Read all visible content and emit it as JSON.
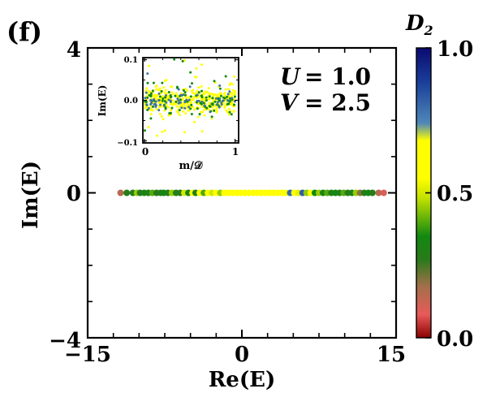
{
  "chart_data": [
    {
      "type": "scatter",
      "panel_label": "(f)",
      "xlabel": "Re(E)",
      "ylabel": "Im(E)",
      "xlim": [
        -15,
        15
      ],
      "ylim": [
        -4,
        4
      ],
      "xticks": [
        -15,
        0,
        15
      ],
      "yticks": [
        -4,
        0,
        4
      ],
      "xtick_labels": [
        "−15",
        "0",
        "15"
      ],
      "ytick_labels": [
        "−4",
        "0",
        "4"
      ],
      "annotations": [
        {
          "var": "U",
          "eq": "= 1.0"
        },
        {
          "var": "V",
          "eq": "= 2.5"
        }
      ],
      "series": [
        {
          "name": "eigenvalues",
          "color_by": "D2",
          "points": [
            {
              "x": -11.8,
              "y": 0,
              "c": 0.15
            },
            {
              "x": -11.2,
              "y": 0,
              "c": 0.28
            },
            {
              "x": -10.6,
              "y": 0,
              "c": 0.3
            },
            {
              "x": -10.2,
              "y": 0,
              "c": 0.45
            },
            {
              "x": -9.9,
              "y": 0,
              "c": 0.28
            },
            {
              "x": -9.5,
              "y": 0,
              "c": 0.32
            },
            {
              "x": -9.1,
              "y": 0,
              "c": 0.3
            },
            {
              "x": -8.7,
              "y": 0,
              "c": 0.4
            },
            {
              "x": -8.3,
              "y": 0,
              "c": 0.28
            },
            {
              "x": -7.9,
              "y": 0,
              "c": 0.3
            },
            {
              "x": -7.6,
              "y": 0,
              "c": 0.35
            },
            {
              "x": -7.2,
              "y": 0,
              "c": 0.28
            },
            {
              "x": -6.8,
              "y": 0,
              "c": 0.45
            },
            {
              "x": -6.4,
              "y": 0,
              "c": 0.3
            },
            {
              "x": -6.0,
              "y": 0,
              "c": 0.28
            },
            {
              "x": -5.6,
              "y": 0,
              "c": 0.5
            },
            {
              "x": -5.2,
              "y": 0,
              "c": 0.32
            },
            {
              "x": -4.8,
              "y": 0,
              "c": 0.62
            },
            {
              "x": -4.5,
              "y": 0,
              "c": 0.3
            },
            {
              "x": -4.1,
              "y": 0,
              "c": 0.55
            },
            {
              "x": -3.7,
              "y": 0,
              "c": 0.4
            },
            {
              "x": -3.3,
              "y": 0,
              "c": 0.55
            },
            {
              "x": -2.9,
              "y": 0,
              "c": 0.5
            },
            {
              "x": -2.5,
              "y": 0,
              "c": 0.58
            },
            {
              "x": -2.1,
              "y": 0,
              "c": 0.45
            },
            {
              "x": -1.7,
              "y": 0,
              "c": 0.6
            },
            {
              "x": -1.3,
              "y": 0,
              "c": 0.55
            },
            {
              "x": -0.9,
              "y": 0,
              "c": 0.62
            },
            {
              "x": -0.5,
              "y": 0,
              "c": 0.58
            },
            {
              "x": -0.1,
              "y": 0,
              "c": 0.64
            },
            {
              "x": 0.3,
              "y": 0,
              "c": 0.6
            },
            {
              "x": 0.7,
              "y": 0,
              "c": 0.65
            },
            {
              "x": 1.1,
              "y": 0,
              "c": 0.58
            },
            {
              "x": 1.5,
              "y": 0,
              "c": 0.62
            },
            {
              "x": 1.9,
              "y": 0,
              "c": 0.55
            },
            {
              "x": 2.3,
              "y": 0,
              "c": 0.63
            },
            {
              "x": 2.7,
              "y": 0,
              "c": 0.58
            },
            {
              "x": 3.1,
              "y": 0,
              "c": 0.6
            },
            {
              "x": 3.5,
              "y": 0,
              "c": 0.55
            },
            {
              "x": 3.9,
              "y": 0,
              "c": 0.62
            },
            {
              "x": 4.3,
              "y": 0,
              "c": 0.58
            },
            {
              "x": 4.7,
              "y": 0,
              "c": 0.8
            },
            {
              "x": 5.1,
              "y": 0,
              "c": 0.6
            },
            {
              "x": 5.5,
              "y": 0,
              "c": 0.52
            },
            {
              "x": 5.9,
              "y": 0,
              "c": 0.82
            },
            {
              "x": 6.3,
              "y": 0,
              "c": 0.45
            },
            {
              "x": 6.7,
              "y": 0,
              "c": 0.58
            },
            {
              "x": 7.1,
              "y": 0,
              "c": 0.35
            },
            {
              "x": 7.5,
              "y": 0,
              "c": 0.45
            },
            {
              "x": 7.9,
              "y": 0,
              "c": 0.32
            },
            {
              "x": 8.3,
              "y": 0,
              "c": 0.4
            },
            {
              "x": 8.7,
              "y": 0,
              "c": 0.3
            },
            {
              "x": 9.1,
              "y": 0,
              "c": 0.35
            },
            {
              "x": 9.5,
              "y": 0,
              "c": 0.3
            },
            {
              "x": 9.9,
              "y": 0,
              "c": 0.4
            },
            {
              "x": 10.3,
              "y": 0,
              "c": 0.28
            },
            {
              "x": 10.7,
              "y": 0,
              "c": 0.32
            },
            {
              "x": 11.1,
              "y": 0,
              "c": 0.45
            },
            {
              "x": 11.5,
              "y": 0,
              "c": 0.2
            },
            {
              "x": 11.9,
              "y": 0,
              "c": 0.28
            },
            {
              "x": 12.3,
              "y": 0,
              "c": 0.35
            },
            {
              "x": 12.7,
              "y": 0,
              "c": 0.28
            },
            {
              "x": 13.3,
              "y": 0,
              "c": 0.15
            },
            {
              "x": 13.8,
              "y": 0,
              "c": 0.1
            }
          ]
        }
      ],
      "colorbar": {
        "label": "D2",
        "range": [
          0.0,
          1.0
        ],
        "ticks": [
          0.0,
          0.5,
          1.0
        ],
        "tick_labels": [
          "0.0",
          "0.5",
          "1.0"
        ],
        "stops": [
          {
            "v": 0.0,
            "color": "#8b0000"
          },
          {
            "v": 0.08,
            "color": "#e85a5a"
          },
          {
            "v": 0.18,
            "color": "#a0704a"
          },
          {
            "v": 0.27,
            "color": "#2a7a1a"
          },
          {
            "v": 0.35,
            "color": "#118811"
          },
          {
            "v": 0.48,
            "color": "#c0e000"
          },
          {
            "v": 0.55,
            "color": "#ffff00"
          },
          {
            "v": 0.68,
            "color": "#ffff00"
          },
          {
            "v": 0.74,
            "color": "#4f88b8"
          },
          {
            "v": 0.88,
            "color": "#1a3f9a"
          },
          {
            "v": 1.0,
            "color": "#0a0a70"
          }
        ]
      }
    },
    {
      "type": "scatter",
      "role": "inset",
      "xlabel": "m/𝒟",
      "ylabel": "Im(E)",
      "xlim": [
        -0.02,
        1.04
      ],
      "ylim": [
        -0.105,
        0.105
      ],
      "xticks": [
        0,
        1
      ],
      "yticks": [
        -0.1,
        0.0,
        0.1
      ],
      "xtick_labels": [
        "0",
        "1"
      ],
      "ytick_labels": [
        "−0.1",
        "0.0",
        "0.1"
      ],
      "series": [
        {
          "name": "yellow",
          "color": "#ffff00",
          "count": 420,
          "y_spread": 0.09
        },
        {
          "name": "green",
          "color": "#118811",
          "count": 110,
          "y_spread": 0.095
        },
        {
          "name": "blue",
          "color": "#3f74a8",
          "count": 60,
          "y_spread": 0.07
        }
      ]
    }
  ]
}
